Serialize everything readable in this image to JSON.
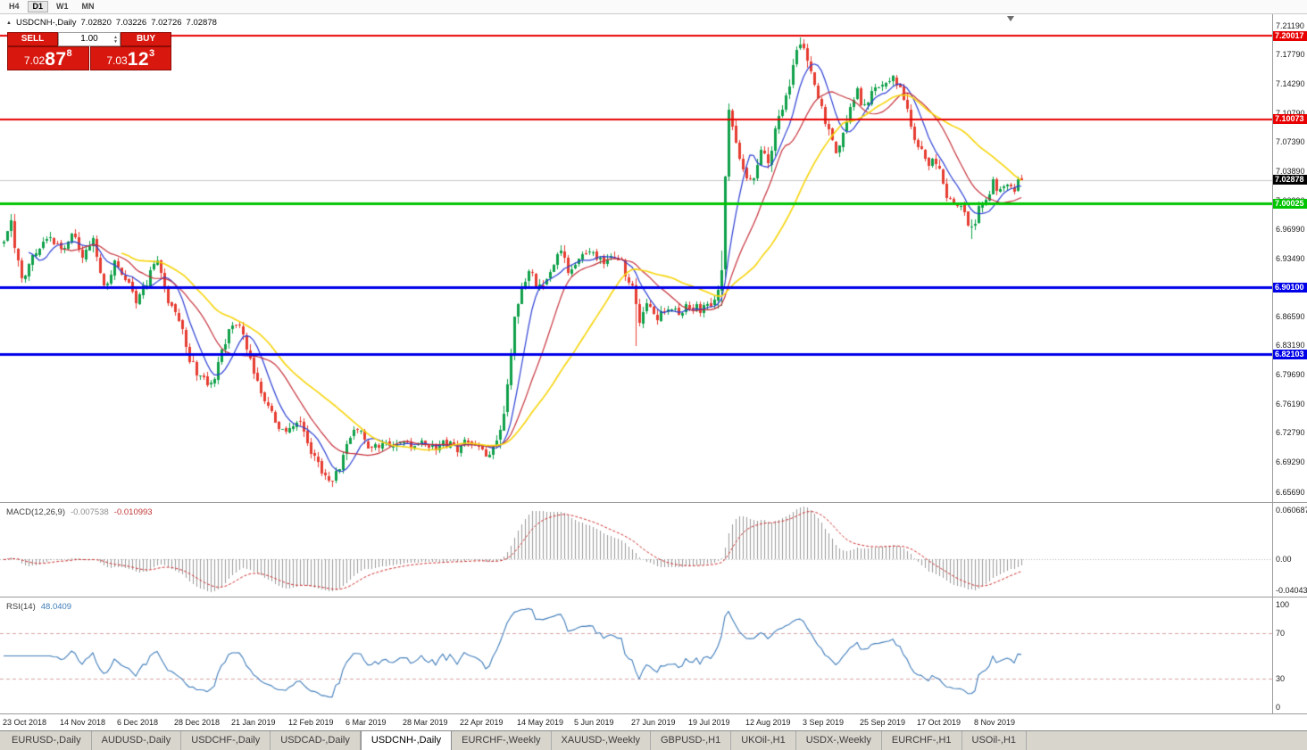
{
  "toolbar": {
    "timeframes": [
      "H4",
      "D1",
      "W1",
      "MN"
    ],
    "active": "D1"
  },
  "chart": {
    "symbol_label": "USDCNH-,Daily",
    "ohlc": {
      "open": "7.02820",
      "high": "7.03226",
      "low": "7.02726",
      "close": "7.02878"
    }
  },
  "trade_panel": {
    "sell_label": "SELL",
    "buy_label": "BUY",
    "volume": "1.00",
    "sell_price": {
      "big": "7.02",
      "pips": "87",
      "frac": "8"
    },
    "buy_price": {
      "big": "7.03",
      "pips": "12",
      "frac": "3"
    }
  },
  "price_axis": {
    "ticks": [
      "7.21190",
      "7.17790",
      "7.14290",
      "7.10790",
      "7.07390",
      "7.03890",
      "7.00390",
      "6.96990",
      "6.93490",
      "6.89990",
      "6.86590",
      "6.83190",
      "6.79690",
      "6.76190",
      "6.72790",
      "6.69290",
      "6.65690"
    ]
  },
  "hlines": [
    {
      "price": 7.20017,
      "label": "7.20017",
      "color": "#e80000",
      "width": 2
    },
    {
      "price": 7.10073,
      "label": "7.10073",
      "color": "#e80000",
      "width": 2
    },
    {
      "price": 7.00025,
      "label": "7.00025",
      "color": "#00c400",
      "width": 3
    },
    {
      "price": 6.901,
      "label": "6.90100",
      "color": "#0000e8",
      "width": 3
    },
    {
      "price": 6.82103,
      "label": "6.82103",
      "color": "#0000e8",
      "width": 3
    }
  ],
  "current_price": {
    "value": 7.02878,
    "label": "7.02878"
  },
  "colors": {
    "up": "#0fa04a",
    "down": "#e63c30",
    "macd_hist": "#9a9a9a",
    "macd_signal": "#cc2f2f",
    "rsi": "#3f7cba",
    "level_dash": "#d9a3a3",
    "bid_line": "#c9c9c9",
    "chip_current_bg": "#000000"
  },
  "chart_data": {
    "type": "candlestick",
    "symbol": "USDCNH",
    "timeframe": "Daily",
    "candle_count": 286,
    "price_range": [
      6.645,
      7.225
    ],
    "label_interval": 16,
    "x_labels": [
      "23 Oct 2018",
      "14 Nov 2018",
      "6 Dec 2018",
      "28 Dec 2018",
      "21 Jan 2019",
      "12 Feb 2019",
      "6 Mar 2019",
      "28 Mar 2019",
      "22 Apr 2019",
      "14 May 2019",
      "5 Jun 2019",
      "27 Jun 2019",
      "19 Jul 2019",
      "12 Aug 2019",
      "3 Sep 2019",
      "25 Sep 2019",
      "17 Oct 2019",
      "8 Nov 2019"
    ],
    "anchors": [
      [
        0,
        6.952
      ],
      [
        2,
        6.976
      ],
      [
        5,
        6.906
      ],
      [
        9,
        6.945
      ],
      [
        13,
        6.966
      ],
      [
        16,
        6.944
      ],
      [
        19,
        6.964
      ],
      [
        22,
        6.936
      ],
      [
        25,
        6.956
      ],
      [
        28,
        6.902
      ],
      [
        31,
        6.93
      ],
      [
        34,
        6.916
      ],
      [
        37,
        6.882
      ],
      [
        40,
        6.908
      ],
      [
        43,
        6.934
      ],
      [
        46,
        6.886
      ],
      [
        49,
        6.864
      ],
      [
        52,
        6.818
      ],
      [
        55,
        6.792
      ],
      [
        58,
        6.782
      ],
      [
        61,
        6.828
      ],
      [
        64,
        6.856
      ],
      [
        67,
        6.846
      ],
      [
        70,
        6.8
      ],
      [
        73,
        6.766
      ],
      [
        76,
        6.742
      ],
      [
        79,
        6.726
      ],
      [
        82,
        6.746
      ],
      [
        85,
        6.716
      ],
      [
        88,
        6.69
      ],
      [
        91,
        6.667
      ],
      [
        94,
        6.688
      ],
      [
        97,
        6.722
      ],
      [
        100,
        6.732
      ],
      [
        103,
        6.706
      ],
      [
        106,
        6.716
      ],
      [
        109,
        6.706
      ],
      [
        112,
        6.72
      ],
      [
        115,
        6.71
      ],
      [
        118,
        6.718
      ],
      [
        121,
        6.708
      ],
      [
        124,
        6.716
      ],
      [
        127,
        6.704
      ],
      [
        130,
        6.722
      ],
      [
        133,
        6.712
      ],
      [
        136,
        6.7
      ],
      [
        139,
        6.726
      ],
      [
        141,
        6.786
      ],
      [
        143,
        6.864
      ],
      [
        145,
        6.904
      ],
      [
        147,
        6.92
      ],
      [
        150,
        6.898
      ],
      [
        153,
        6.924
      ],
      [
        156,
        6.944
      ],
      [
        158,
        6.92
      ],
      [
        161,
        6.934
      ],
      [
        164,
        6.948
      ],
      [
        167,
        6.93
      ],
      [
        170,
        6.942
      ],
      [
        173,
        6.928
      ],
      [
        176,
        6.898
      ],
      [
        178,
        6.858
      ],
      [
        180,
        6.878
      ],
      [
        183,
        6.862
      ],
      [
        186,
        6.88
      ],
      [
        189,
        6.872
      ],
      [
        192,
        6.878
      ],
      [
        195,
        6.874
      ],
      [
        198,
        6.882
      ],
      [
        200,
        6.896
      ],
      [
        201,
        6.924
      ],
      [
        202,
        7.03
      ],
      [
        203,
        7.118
      ],
      [
        204,
        7.09
      ],
      [
        206,
        7.05
      ],
      [
        208,
        7.032
      ],
      [
        210,
        7.026
      ],
      [
        212,
        7.062
      ],
      [
        214,
        7.048
      ],
      [
        216,
        7.088
      ],
      [
        218,
        7.118
      ],
      [
        220,
        7.142
      ],
      [
        222,
        7.18
      ],
      [
        223,
        7.192
      ],
      [
        225,
        7.172
      ],
      [
        227,
        7.146
      ],
      [
        229,
        7.112
      ],
      [
        231,
        7.088
      ],
      [
        233,
        7.056
      ],
      [
        235,
        7.088
      ],
      [
        237,
        7.118
      ],
      [
        239,
        7.132
      ],
      [
        241,
        7.116
      ],
      [
        243,
        7.132
      ],
      [
        245,
        7.142
      ],
      [
        247,
        7.146
      ],
      [
        249,
        7.156
      ],
      [
        251,
        7.134
      ],
      [
        253,
        7.108
      ],
      [
        255,
        7.082
      ],
      [
        257,
        7.06
      ],
      [
        259,
        7.046
      ],
      [
        261,
        7.052
      ],
      [
        263,
        7.022
      ],
      [
        265,
        7.002
      ],
      [
        268,
        6.998
      ],
      [
        271,
        6.968
      ],
      [
        273,
        6.996
      ],
      [
        275,
        7.01
      ],
      [
        277,
        7.024
      ],
      [
        279,
        7.018
      ],
      [
        281,
        7.028
      ],
      [
        283,
        7.02
      ],
      [
        285,
        7.029
      ]
    ],
    "wick_events": [
      {
        "index": 177,
        "low_extend": 0.05
      },
      {
        "index": 271,
        "low_extend": 0.012
      },
      {
        "index": 223,
        "high_extend": 0.004
      }
    ],
    "moving_averages": [
      {
        "period": 8,
        "color": "#2c3fd4",
        "width": 1.2
      },
      {
        "period": 17,
        "color": "#c5303a",
        "width": 1.2
      },
      {
        "period": 34,
        "color": "#f6d40a",
        "width": 1.6
      }
    ],
    "indicators": {
      "macd": {
        "label": "MACD(12,26,9)",
        "main_value": "-0.007538",
        "signal_value": "-0.010993",
        "params": [
          12,
          26,
          9
        ],
        "axis_labels": [
          "0.060687",
          "0.00",
          "-0.040435"
        ]
      },
      "rsi": {
        "label": "RSI(14)",
        "value": "48.0409",
        "period": 14,
        "levels": [
          70,
          30
        ],
        "axis_labels": [
          "100",
          "70",
          "30",
          "0"
        ]
      }
    }
  },
  "tabs": {
    "items": [
      "EURUSD-,Daily",
      "AUDUSD-,Daily",
      "USDCHF-,Daily",
      "USDCAD-,Daily",
      "USDCNH-,Daily",
      "EURCHF-,Weekly",
      "XAUUSD-,Weekly",
      "GBPUSD-,H1",
      "UKOil-,H1",
      "USDX-,Weekly",
      "EURCHF-,H1",
      "USOil-,H1"
    ],
    "active_index": 4
  }
}
